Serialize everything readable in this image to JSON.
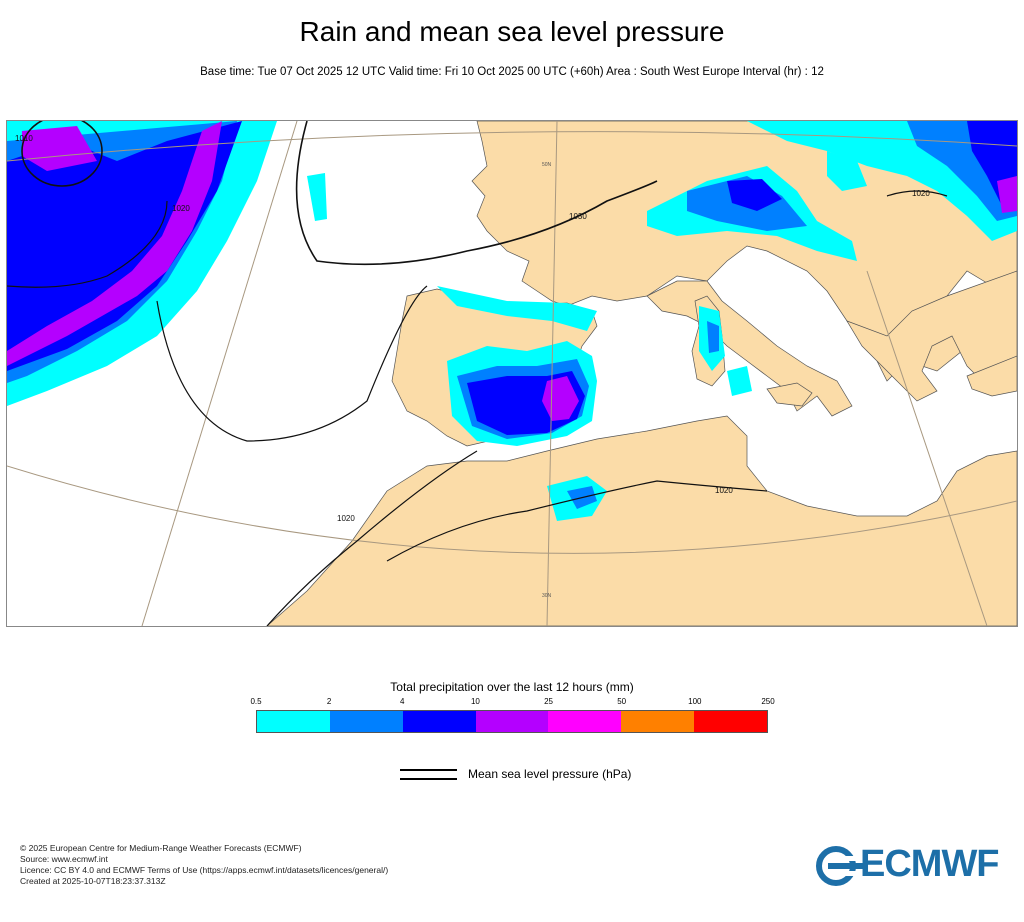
{
  "header": {
    "title": "Rain and mean sea level pressure",
    "subtitle": "Base time: Tue 07 Oct 2025 12 UTC Valid time: Fri 10 Oct 2025 00 UTC (+60h) Area : South West Europe Interval (hr) : 12"
  },
  "map": {
    "isobar_labels": [
      "1010",
      "1020",
      "1030",
      "1020",
      "1020",
      "1020"
    ],
    "grid_labels": [
      "50N",
      "30N"
    ],
    "colors": {
      "sea": "#ffffff",
      "land": "#fbdca8",
      "coast": "#444444",
      "isobar": "#111111"
    }
  },
  "legend": {
    "title": "Total precipitation over the last 12 hours (mm)",
    "ticks": [
      "0.5",
      "2",
      "4",
      "10",
      "25",
      "50",
      "100",
      "250"
    ],
    "colors": [
      "#00ffff",
      "#0080ff",
      "#0000ff",
      "#b400ff",
      "#ff00ff",
      "#ff8000",
      "#ff0000"
    ],
    "isobar_label": "Mean sea level pressure (hPa)"
  },
  "credits": {
    "lines": [
      "© 2025 European Centre for Medium-Range Weather Forecasts (ECMWF)",
      "Source: www.ecmwf.int",
      "Licence: CC BY 4.0 and ECMWF Terms of Use (https://apps.ecmwf.int/datasets/licences/general/)",
      "Created at 2025-10-07T18:23:37.313Z"
    ],
    "logo_text": "ECMWF"
  }
}
